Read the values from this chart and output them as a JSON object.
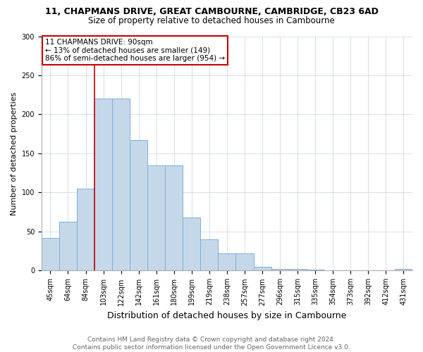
{
  "title": "11, CHAPMANS DRIVE, GREAT CAMBOURNE, CAMBRIDGE, CB23 6AD",
  "subtitle": "Size of property relative to detached houses in Cambourne",
  "xlabel": "Distribution of detached houses by size in Cambourne",
  "ylabel": "Number of detached properties",
  "categories": [
    "45sqm",
    "64sqm",
    "84sqm",
    "103sqm",
    "122sqm",
    "142sqm",
    "161sqm",
    "180sqm",
    "199sqm",
    "219sqm",
    "238sqm",
    "257sqm",
    "277sqm",
    "296sqm",
    "315sqm",
    "335sqm",
    "354sqm",
    "373sqm",
    "392sqm",
    "412sqm",
    "431sqm"
  ],
  "values": [
    42,
    63,
    105,
    220,
    220,
    167,
    135,
    135,
    68,
    40,
    22,
    22,
    5,
    2,
    2,
    1,
    0,
    0,
    0,
    0,
    2
  ],
  "bar_facecolor": "#c5d8ea",
  "bar_edgecolor": "#7aafd4",
  "vline_color": "#cc0000",
  "vline_x_index": 2,
  "annotation_text": "11 CHAPMANS DRIVE: 90sqm\n← 13% of detached houses are smaller (149)\n86% of semi-detached houses are larger (954) →",
  "annotation_box_facecolor": "#ffffff",
  "annotation_box_edgecolor": "#cc0000",
  "ylim_max": 300,
  "yticks": [
    0,
    50,
    100,
    150,
    200,
    250,
    300
  ],
  "footer": "Contains HM Land Registry data © Crown copyright and database right 2024.\nContains public sector information licensed under the Open Government Licence v3.0.",
  "title_fontsize": 9,
  "subtitle_fontsize": 8.5,
  "xlabel_fontsize": 9,
  "ylabel_fontsize": 8,
  "tick_fontsize": 7,
  "footer_fontsize": 6.5,
  "annotation_fontsize": 7.5,
  "grid_color": "#d0d8e4"
}
